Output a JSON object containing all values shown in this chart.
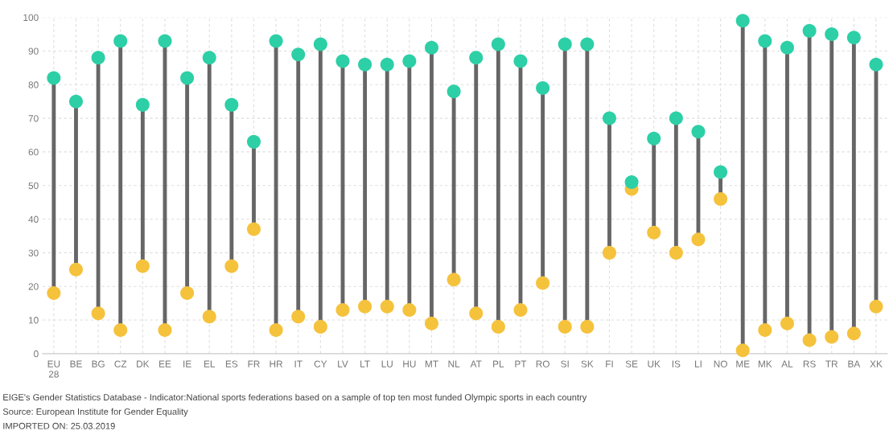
{
  "chart_data": {
    "type": "scatter",
    "categories": [
      "EU\n28",
      "BE",
      "BG",
      "CZ",
      "DK",
      "EE",
      "IE",
      "EL",
      "ES",
      "FR",
      "HR",
      "IT",
      "CY",
      "LV",
      "LT",
      "LU",
      "HU",
      "MT",
      "NL",
      "AT",
      "PL",
      "PT",
      "RO",
      "SI",
      "SK",
      "FI",
      "SE",
      "UK",
      "IS",
      "LI",
      "NO",
      "ME",
      "MK",
      "AL",
      "RS",
      "TR",
      "BA",
      "XK"
    ],
    "series": [
      {
        "color": "#2dcfa6",
        "values": [
          82,
          75,
          88,
          93,
          74,
          93,
          82,
          88,
          74,
          63,
          93,
          89,
          92,
          87,
          86,
          86,
          87,
          91,
          78,
          88,
          92,
          87,
          79,
          92,
          92,
          70,
          51,
          64,
          70,
          66,
          54,
          99,
          93,
          91,
          96,
          95,
          94,
          86
        ]
      },
      {
        "color": "#f5c23c",
        "values": [
          18,
          25,
          12,
          7,
          26,
          7,
          18,
          11,
          26,
          37,
          7,
          11,
          8,
          13,
          14,
          14,
          13,
          9,
          22,
          12,
          8,
          13,
          21,
          8,
          8,
          30,
          49,
          36,
          30,
          34,
          46,
          1,
          7,
          9,
          4,
          5,
          6,
          14
        ]
      }
    ],
    "ylim": [
      0,
      100
    ],
    "yticks": [
      0,
      10,
      20,
      30,
      40,
      50,
      60,
      70,
      80,
      90,
      100
    ],
    "grid": true,
    "marker": "circle",
    "annotations": [
      "EIGE's Gender Statistics Database - Indicator:National sports federations based on a sample of top ten most funded Olympic sports in each country",
      "Source: European Institute for Gender Equality",
      "IMPORTED ON: 25.03.2019"
    ]
  }
}
